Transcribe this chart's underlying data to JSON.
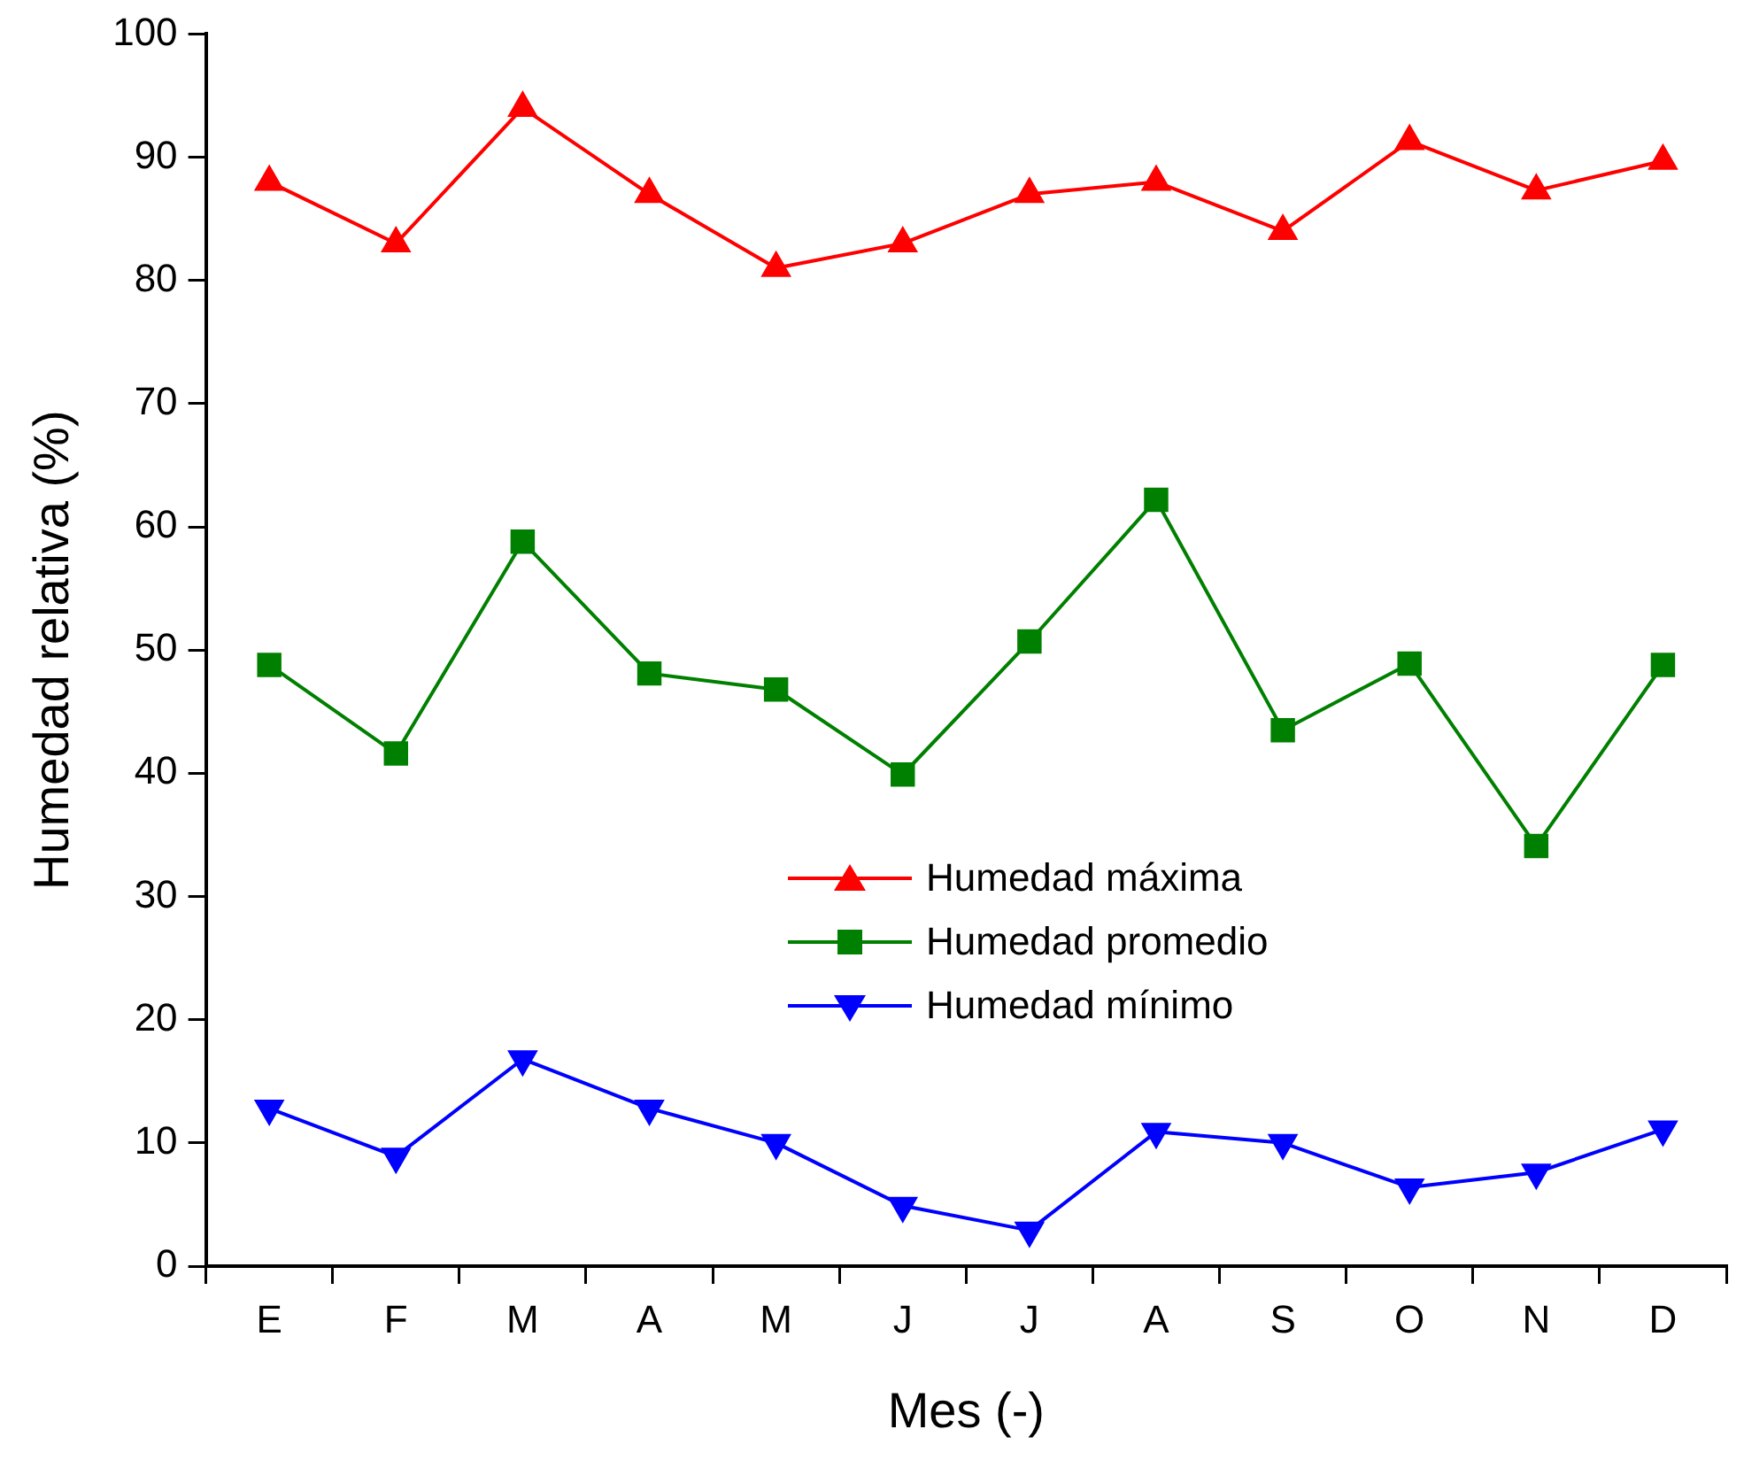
{
  "chart_data": {
    "type": "line",
    "xlabel": "Mes (-)",
    "ylabel": "Humedad relativa (%)",
    "categories": [
      "E",
      "F",
      "M",
      "A",
      "M",
      "J",
      "J",
      "A",
      "S",
      "O",
      "N",
      "D"
    ],
    "series": [
      {
        "name": "Humedad máxima",
        "color": "#ff0000",
        "marker": "triangle",
        "values": [
          88,
          83,
          94,
          87,
          81,
          83,
          87,
          88,
          84,
          91.3,
          87.3,
          89.7
        ]
      },
      {
        "name": "Humedad promedio",
        "color": "#008000",
        "marker": "square",
        "values": [
          48.8,
          41.6,
          58.8,
          48.1,
          46.8,
          39.9,
          50.7,
          62.2,
          43.5,
          48.9,
          34.1,
          48.8
        ]
      },
      {
        "name": "Humedad mínimo",
        "color": "#0000ff",
        "marker": "triangle_down",
        "values": [
          12.8,
          8.9,
          16.8,
          12.8,
          10,
          4.9,
          2.9,
          10.9,
          10,
          6.4,
          7.6,
          11.1
        ]
      }
    ],
    "ylim": [
      0,
      100
    ],
    "yticks": [
      0,
      10,
      20,
      30,
      40,
      50,
      60,
      70,
      80,
      90,
      100
    ],
    "grid": false,
    "legend": "center",
    "line_style": "solid"
  }
}
